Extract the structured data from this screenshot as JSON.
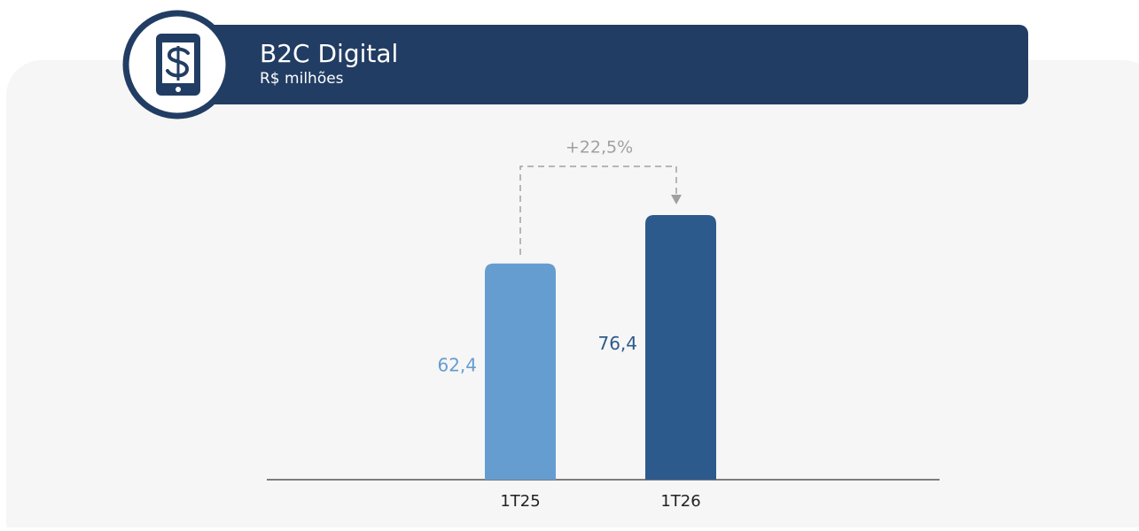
{
  "chart_data": {
    "type": "bar",
    "title": "B2C Digital",
    "subtitle": "R$ milhões",
    "categories": [
      "1T25",
      "1T26"
    ],
    "values": [
      62.4,
      76.4
    ],
    "value_labels": [
      "62,4",
      "76,4"
    ],
    "colors": [
      "#659dd1",
      "#2d5a8c"
    ],
    "annotation": "+22,5%"
  }
}
